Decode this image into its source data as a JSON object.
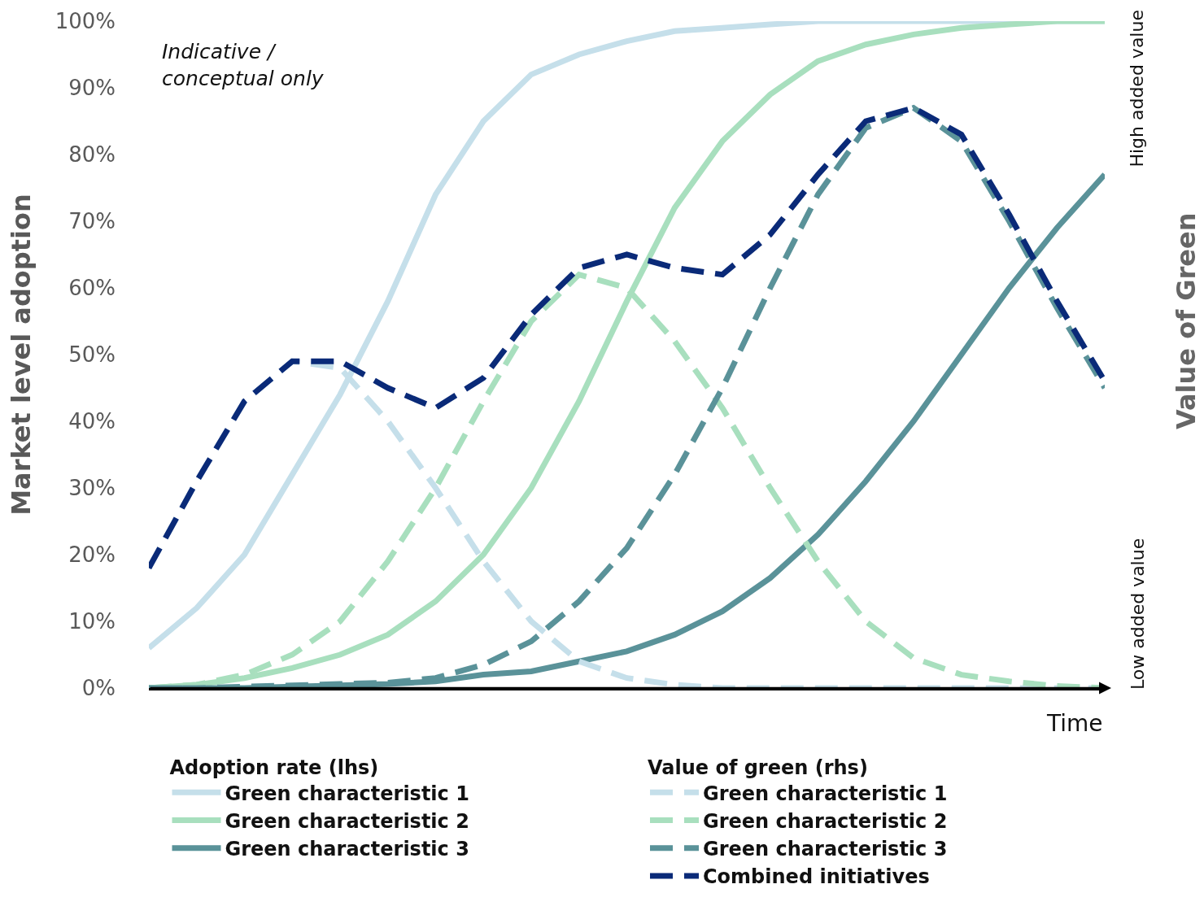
{
  "chart_data": {
    "type": "line",
    "xlabel": "Time",
    "ylabel": "Market level adoption",
    "y2label": "Value of Green",
    "annotations": [
      "Indicative / conceptual only",
      "High added value",
      "Low added value",
      "Adoption rate (lhs)",
      "Value of green (rhs)"
    ],
    "categories": [
      null,
      null,
      null,
      null,
      null,
      null,
      null,
      null,
      null,
      null,
      null,
      null,
      null,
      null,
      null,
      null,
      null,
      null,
      null,
      null,
      null
    ],
    "ylim": [
      0,
      100
    ],
    "yticks": [
      {
        "value": 0,
        "label": "0%"
      },
      {
        "value": 10,
        "label": "10%"
      },
      {
        "value": 20,
        "label": "20%"
      },
      {
        "value": 30,
        "label": "30%"
      },
      {
        "value": 40,
        "label": "40%"
      },
      {
        "value": 50,
        "label": "50%"
      },
      {
        "value": 60,
        "label": "60%"
      },
      {
        "value": 70,
        "label": "70%"
      },
      {
        "value": 80,
        "label": "80%"
      },
      {
        "value": 90,
        "label": "90%"
      },
      {
        "value": 100,
        "label": "100%"
      }
    ],
    "grid": false,
    "marker": "none",
    "legend": "bottom",
    "series": [
      {
        "name": "Green characteristic 1",
        "color": "#c5dfea",
        "line_style": "solid",
        "values": [
          6,
          12,
          20,
          32,
          44,
          58,
          74,
          85,
          92,
          95,
          97,
          98.5,
          99,
          99.5,
          100,
          100,
          100,
          100,
          100,
          100,
          100
        ]
      },
      {
        "name": "Green characteristic 2",
        "color": "#a8dfbe",
        "line_style": "solid",
        "values": [
          0,
          0.5,
          1.5,
          3,
          5,
          8,
          13,
          20,
          30,
          43,
          58,
          72,
          82,
          89,
          94,
          96.5,
          98,
          99,
          99.5,
          100,
          100
        ]
      },
      {
        "name": "Green characteristic 3",
        "color": "#5a9299",
        "line_style": "solid",
        "values": [
          0,
          0,
          0,
          0.2,
          0.4,
          0.6,
          1,
          2,
          2.5,
          4,
          5.5,
          8,
          11.5,
          16.5,
          23,
          31,
          40,
          50,
          60,
          69,
          77
        ]
      },
      {
        "name": "Green characteristic 1",
        "color": "#c5dfea",
        "line_style": "dashed",
        "values": [
          18,
          31,
          43,
          49,
          48,
          40,
          30,
          19,
          10,
          4,
          1.5,
          0.5,
          0,
          0,
          0,
          0,
          0,
          0,
          0,
          0,
          0
        ]
      },
      {
        "name": "Green characteristic 2",
        "color": "#a8dfbe",
        "line_style": "dashed",
        "values": [
          0,
          0.5,
          2,
          5,
          10,
          19,
          30,
          43,
          55,
          62,
          60,
          52,
          42,
          30,
          19,
          10,
          4.5,
          2,
          1,
          0.3,
          0
        ]
      },
      {
        "name": "Green characteristic 3",
        "color": "#5a9299",
        "line_style": "dashed",
        "values": [
          0,
          0,
          0.2,
          0.4,
          0.6,
          0.8,
          1.5,
          3.5,
          7,
          13,
          21,
          32,
          45,
          60,
          74,
          84,
          87,
          82,
          70,
          57,
          45
        ]
      },
      {
        "name": "Combined initiatives",
        "color": "#0a2a78",
        "line_style": "dashed",
        "values": [
          18,
          31,
          43,
          49,
          49,
          45,
          42,
          46.5,
          56,
          63,
          65,
          63,
          62,
          68,
          77,
          85,
          87,
          83,
          71,
          58,
          46
        ]
      }
    ]
  }
}
